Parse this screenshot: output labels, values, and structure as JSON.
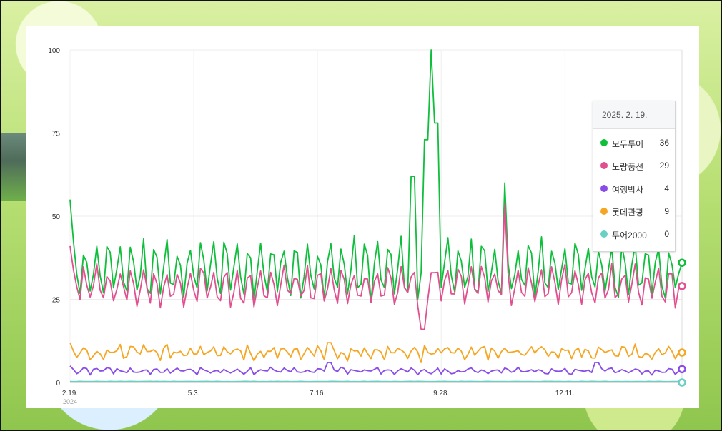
{
  "chart_data": {
    "type": "line",
    "ylim": [
      0,
      100
    ],
    "yticks": [
      "0",
      "25",
      "50",
      "75",
      "100"
    ],
    "xticks": [
      {
        "label": "2.19.",
        "sub": "2024",
        "day": 0
      },
      {
        "label": "5.3.",
        "day": 74
      },
      {
        "label": "7.16.",
        "day": 148
      },
      {
        "label": "9.28.",
        "day": 222
      },
      {
        "label": "12.11.",
        "day": 296
      }
    ],
    "x_range_days": 366,
    "tooltip": {
      "date": "2025. 2. 19."
    },
    "series": [
      {
        "name": "모두투어",
        "color": "#0fbf3c",
        "last": "36",
        "base": 34,
        "amp": 8,
        "noise": 2.5,
        "start": 55,
        "end": 36,
        "spikes": [
          [
            205,
            62
          ],
          [
            213,
            73
          ],
          [
            217,
            100
          ],
          [
            218,
            85
          ],
          [
            219,
            78
          ],
          [
            260,
            60
          ]
        ]
      },
      {
        "name": "노랑풍선",
        "color": "#e0508f",
        "last": "29",
        "base": 29,
        "amp": 5,
        "noise": 2,
        "start": 41,
        "end": 29,
        "spikes": [
          [
            217,
            33
          ],
          [
            260,
            54
          ],
          [
            210,
            16
          ],
          [
            211,
            16
          ]
        ]
      },
      {
        "name": "여행박사",
        "color": "#8a4ce8",
        "last": "4",
        "base": 3.5,
        "amp": 0.6,
        "noise": 0.7,
        "start": 5,
        "end": 4,
        "spikes": [
          [
            155,
            6
          ],
          [
            315,
            6
          ]
        ]
      },
      {
        "name": "롯데관광",
        "color": "#f5a623",
        "last": "9",
        "base": 9,
        "amp": 1.2,
        "noise": 1.4,
        "start": 12,
        "end": 9,
        "spikes": [
          [
            155,
            12
          ],
          [
            210,
            6
          ]
        ]
      },
      {
        "name": "투어2000",
        "color": "#6ad0c4",
        "last": "0",
        "base": 0.3,
        "amp": 0,
        "noise": 0.05,
        "start": 0.3,
        "end": 0,
        "spikes": []
      }
    ]
  }
}
